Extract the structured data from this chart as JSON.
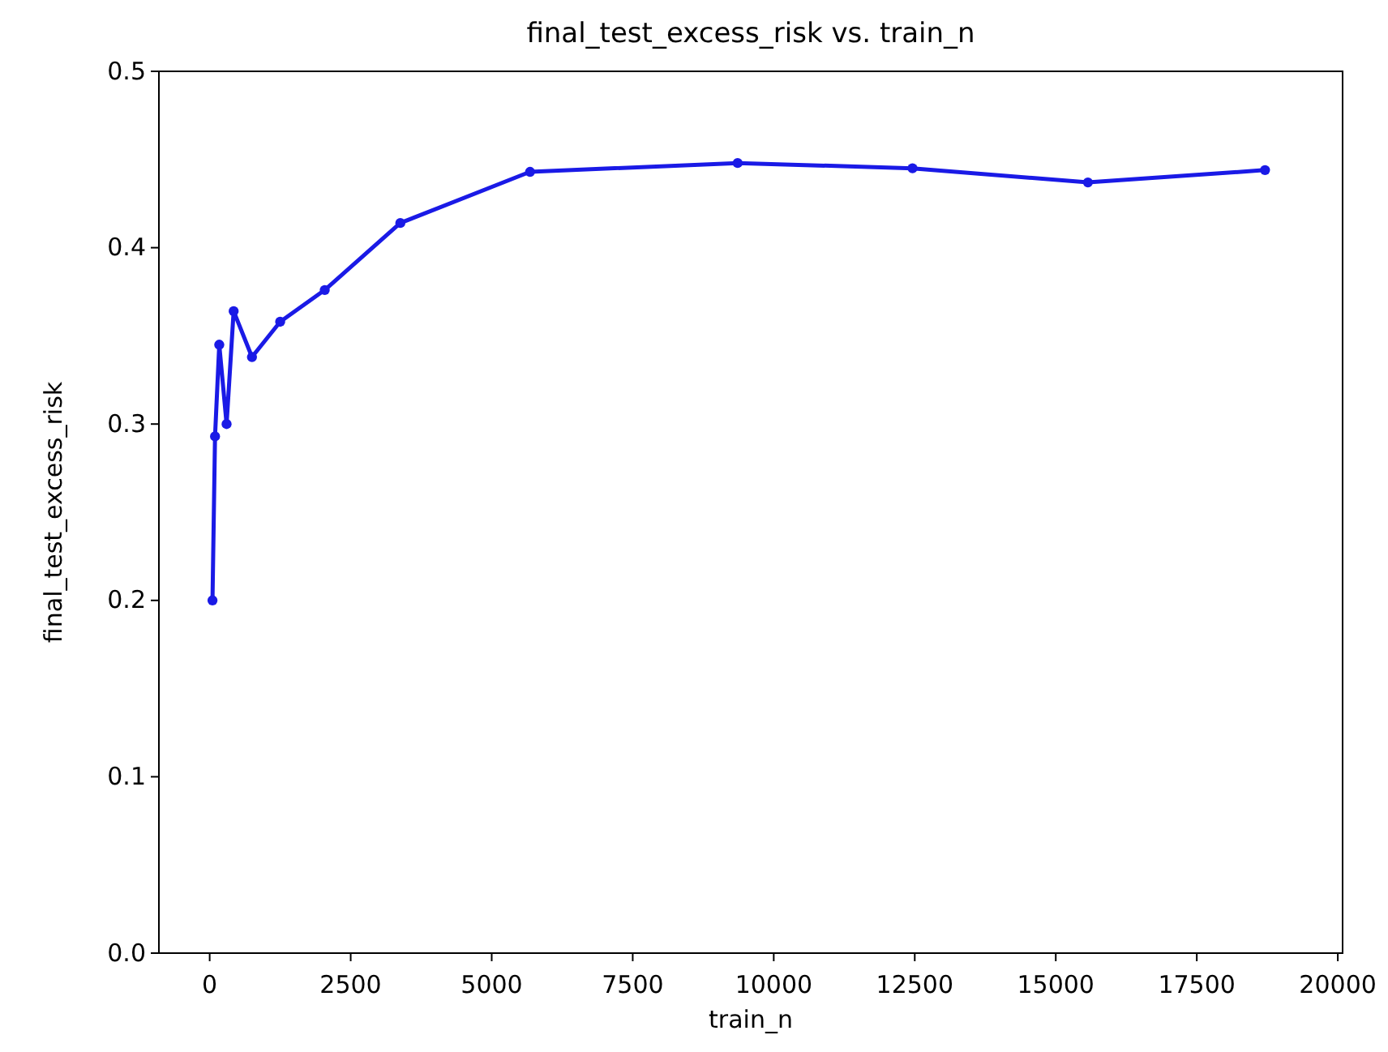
{
  "chart_data": {
    "type": "line",
    "title": "final_test_excess_risk vs. train_n",
    "xlabel": "train_n",
    "ylabel": "final_test_excess_risk",
    "x": [
      50,
      95,
      170,
      300,
      425,
      750,
      1250,
      2040,
      3380,
      5680,
      9360,
      12460,
      15570,
      18710
    ],
    "series": [
      {
        "color": "#1a1ae6",
        "values": [
          0.2,
          0.293,
          0.345,
          0.3,
          0.364,
          0.338,
          0.358,
          0.376,
          0.414,
          0.443,
          0.448,
          0.445,
          0.437,
          0.444
        ]
      }
    ],
    "xlim": [
      -900,
      20085
    ],
    "xticks": [
      0,
      2500,
      5000,
      7500,
      10000,
      12500,
      15000,
      17500,
      20000
    ],
    "ylim": [
      0,
      0.5
    ],
    "yticks": [
      {
        "value": 0,
        "label": "0.0"
      },
      {
        "value": 0.1,
        "label": "0.1"
      },
      {
        "value": 0.2,
        "label": "0.2"
      },
      {
        "value": 0.3,
        "label": "0.3"
      },
      {
        "value": 0.4,
        "label": "0.4"
      },
      {
        "value": 0.5,
        "label": "0.5"
      }
    ],
    "marker": "circle",
    "line_style": "solid"
  }
}
